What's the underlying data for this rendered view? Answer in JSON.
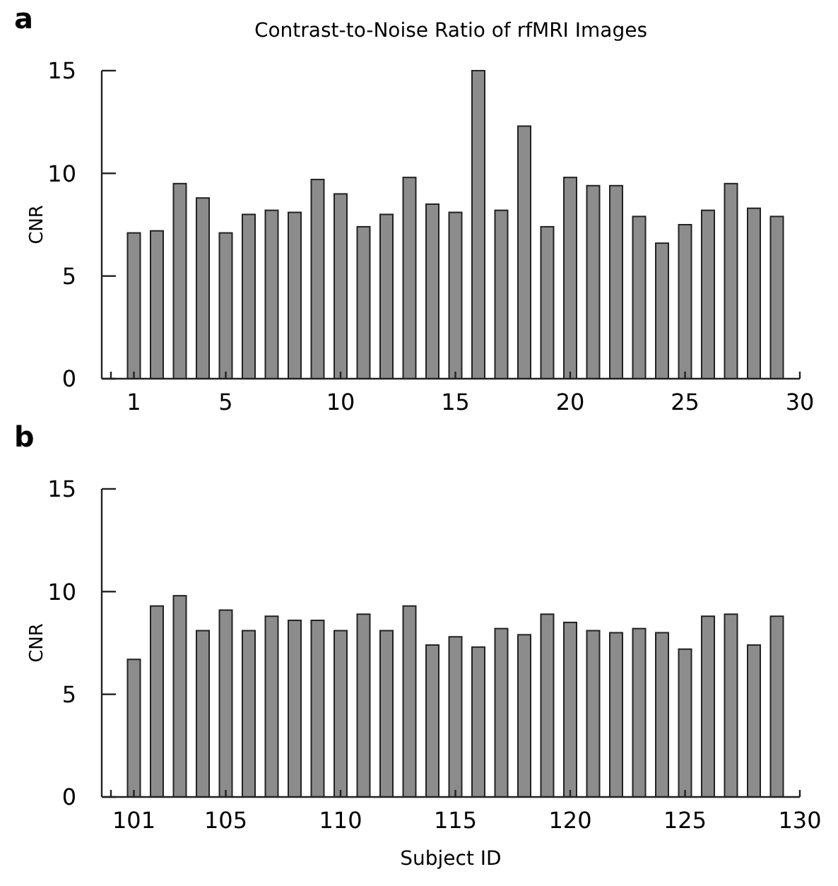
{
  "chart_data": [
    {
      "type": "bar",
      "title": "Contrast-to-Noise Ratio of rfMRI Images",
      "ylabel": "CNR",
      "annotations": [
        "a"
      ],
      "x": [
        1,
        2,
        3,
        4,
        5,
        6,
        7,
        8,
        9,
        10,
        11,
        12,
        13,
        14,
        15,
        16,
        17,
        18,
        19,
        20,
        21,
        22,
        23,
        24,
        25,
        26,
        27,
        28,
        29
      ],
      "values": [
        7.1,
        7.2,
        9.5,
        8.8,
        7.1,
        8.0,
        8.2,
        8.1,
        9.7,
        9.0,
        7.4,
        8.0,
        9.8,
        8.5,
        8.1,
        15.0,
        8.2,
        12.3,
        7.4,
        9.8,
        9.4,
        9.4,
        7.9,
        6.6,
        7.5,
        8.2,
        9.5,
        8.3,
        7.9
      ],
      "color": "#8c8c8c",
      "xlim": [
        -0.4,
        30
      ],
      "xticks": [
        {
          "value": 0,
          "label": null
        },
        1,
        5,
        10,
        15,
        20,
        25,
        30
      ],
      "ylim": [
        0,
        15
      ],
      "yticks": [
        0,
        5,
        10,
        15
      ]
    },
    {
      "type": "bar",
      "xlabel": "Subject ID",
      "ylabel": "CNR",
      "annotations": [
        "b"
      ],
      "x": [
        101,
        102,
        103,
        104,
        105,
        106,
        107,
        108,
        109,
        110,
        111,
        112,
        113,
        114,
        115,
        116,
        117,
        118,
        119,
        120,
        121,
        122,
        123,
        124,
        125,
        126,
        127,
        128,
        129
      ],
      "values": [
        6.7,
        9.3,
        9.8,
        8.1,
        9.1,
        8.1,
        8.8,
        8.6,
        8.6,
        8.1,
        8.9,
        8.1,
        9.3,
        7.4,
        7.8,
        7.3,
        8.2,
        7.9,
        8.9,
        8.5,
        8.1,
        8.0,
        8.2,
        8.0,
        7.2,
        8.8,
        8.9,
        7.4,
        8.8
      ],
      "color": "#8c8c8c",
      "xlim": [
        99.6,
        130
      ],
      "xticks": [
        {
          "value": 100,
          "label": null
        },
        101,
        105,
        110,
        115,
        120,
        125,
        130
      ],
      "ylim": [
        0,
        15
      ],
      "yticks": [
        0,
        5,
        10,
        15
      ]
    }
  ]
}
